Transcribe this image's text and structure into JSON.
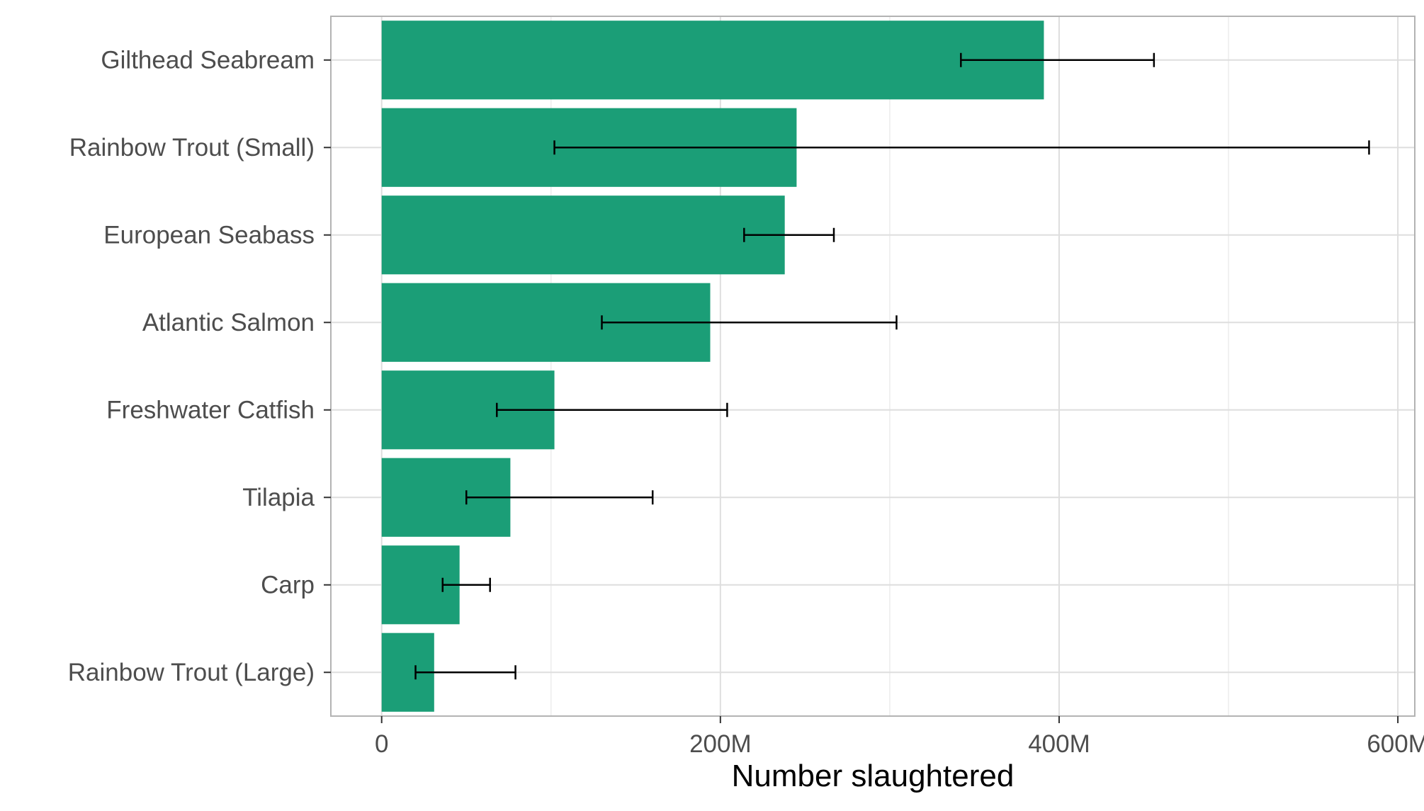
{
  "chart_data": {
    "type": "bar",
    "orientation": "horizontal",
    "title": "",
    "xlabel": "Number slaughtered",
    "ylabel": "",
    "xlim": [
      -30000000,
      610000000
    ],
    "grid": true,
    "legend": "none",
    "bar_color": "#1b9e77",
    "errorbar_color": "#000000",
    "x_ticks": [
      {
        "value": 0,
        "label": "0"
      },
      {
        "value": 200000000,
        "label": "200M"
      },
      {
        "value": 400000000,
        "label": "400M"
      },
      {
        "value": 600000000,
        "label": "600M"
      }
    ],
    "x_minor_gridlines": [
      100000000,
      300000000,
      500000000
    ],
    "categories": [
      "Gilthead Seabream",
      "Rainbow Trout (Small)",
      "European Seabass",
      "Atlantic Salmon",
      "Freshwater Catfish",
      "Tilapia",
      "Carp",
      "Rainbow Trout (Large)"
    ],
    "values": [
      391000000,
      245000000,
      238000000,
      194000000,
      102000000,
      76000000,
      46000000,
      31000000
    ],
    "error_low": [
      342000000,
      102000000,
      214000000,
      130000000,
      68000000,
      50000000,
      36000000,
      20000000
    ],
    "error_high": [
      456000000,
      583000000,
      267000000,
      304000000,
      204000000,
      160000000,
      64000000,
      79000000
    ]
  }
}
